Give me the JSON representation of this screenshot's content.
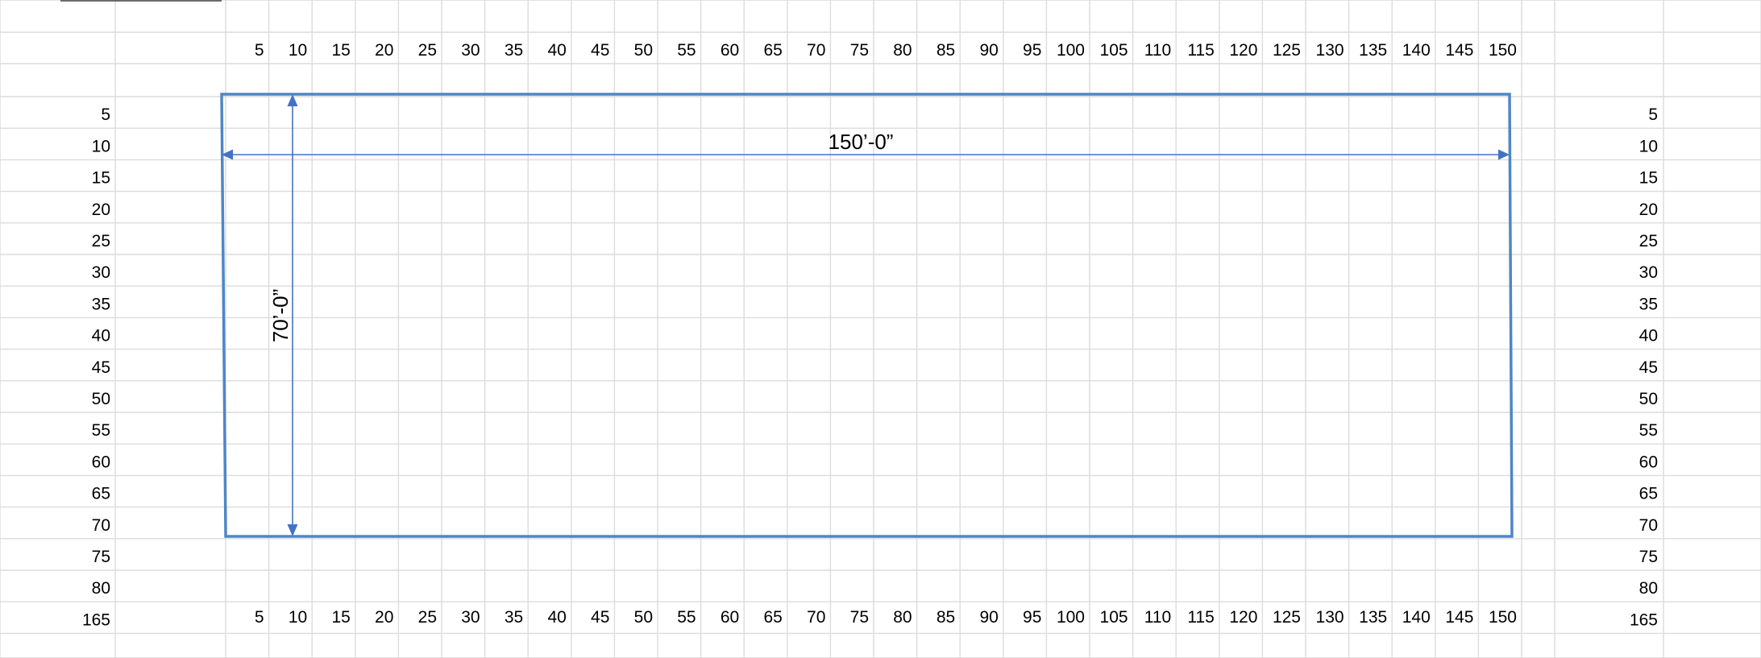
{
  "column_ruler_labels": [
    "5",
    "10",
    "15",
    "20",
    "25",
    "30",
    "35",
    "40",
    "45",
    "50",
    "55",
    "60",
    "65",
    "70",
    "75",
    "80",
    "85",
    "90",
    "95",
    "100",
    "105",
    "110",
    "115",
    "120",
    "125",
    "130",
    "135",
    "140",
    "145",
    "150"
  ],
  "row_ruler_labels": [
    "5",
    "10",
    "15",
    "20",
    "25",
    "30",
    "35",
    "40",
    "45",
    "50",
    "55",
    "60",
    "65",
    "70",
    "75",
    "80",
    "165"
  ],
  "plan": {
    "width_label": "150’-0”",
    "height_label": "70’-0”"
  },
  "colors": {
    "outline": "#4f86c6",
    "dimension": "#4472c4",
    "grid": "#dcdcdc"
  }
}
